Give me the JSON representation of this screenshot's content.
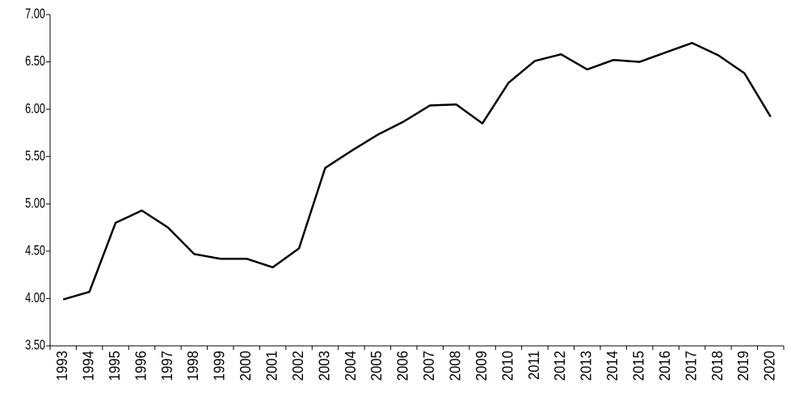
{
  "chart_data": {
    "type": "line",
    "categories": [
      "1993",
      "1994",
      "1995",
      "1996",
      "1997",
      "1998",
      "1999",
      "2000",
      "2001",
      "2002",
      "2003",
      "2004",
      "2005",
      "2006",
      "2007",
      "2008",
      "2009",
      "2010",
      "2011",
      "2012",
      "2013",
      "2014",
      "2015",
      "2016",
      "2017",
      "2018",
      "2019",
      "2020"
    ],
    "values": [
      3.99,
      4.07,
      4.8,
      4.93,
      4.75,
      4.47,
      4.42,
      4.42,
      4.33,
      4.53,
      5.38,
      5.56,
      5.73,
      5.87,
      6.04,
      6.05,
      5.85,
      6.28,
      6.51,
      6.58,
      6.42,
      6.52,
      6.5,
      6.6,
      6.7,
      6.57,
      6.38,
      5.92
    ],
    "color": "#000000",
    "ylim": [
      3.5,
      7.0
    ],
    "yticks": [
      {
        "value": 3.5,
        "label": "3.50"
      },
      {
        "value": 4,
        "label": "4.00"
      },
      {
        "value": 4.5,
        "label": "4.50"
      },
      {
        "value": 5,
        "label": "5.00"
      },
      {
        "value": 5.5,
        "label": "5.50"
      },
      {
        "value": 6,
        "label": "6.00"
      },
      {
        "value": 6.5,
        "label": "6.50"
      },
      {
        "value": 7,
        "label": "7.00"
      }
    ],
    "grid": false
  }
}
